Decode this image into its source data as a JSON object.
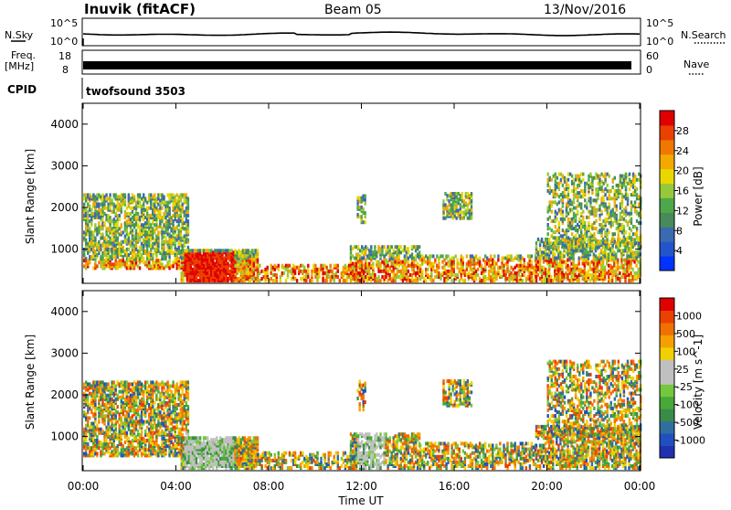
{
  "header": {
    "station": "Inuvik (fitACF)",
    "beam": "Beam 05",
    "date": "13/Nov/2016"
  },
  "panels": {
    "nsky_label": "N.Sky",
    "nsky_ticks": [
      "10^5",
      "10^0"
    ],
    "nsearch_label": "N.Search",
    "nsearch_ticks": [
      "10^5",
      "10^0"
    ],
    "freq_label_1": "Freq.",
    "freq_label_2": "[MHz]",
    "freq_ticks": [
      "18",
      "8"
    ],
    "nave_label": "Nave",
    "nave_ticks": [
      "60",
      "0"
    ],
    "cpid_label": "CPID",
    "cpid_value": "twofsound 3503"
  },
  "chart_data": [
    {
      "type": "heatmap",
      "name": "power",
      "ylabel": "Slant Range [km]",
      "y_ticks": [
        1000,
        2000,
        3000,
        4000
      ],
      "ylim": [
        180,
        4500
      ],
      "colorbar_label": "Power [dB]",
      "colorbar_ticks": [
        "4",
        "8",
        "12",
        "16",
        "20",
        "24",
        "28"
      ],
      "colorbar_colors": [
        "#0033ff",
        "#2255cc",
        "#3a6ab0",
        "#4a8a5a",
        "#4ea84a",
        "#96c83a",
        "#e8d800",
        "#f5a800",
        "#f07800",
        "#ea4000",
        "#e00000"
      ]
    },
    {
      "type": "heatmap",
      "name": "velocity",
      "ylabel": "Slant Range [km]",
      "y_ticks": [
        1000,
        2000,
        3000,
        4000
      ],
      "ylim": [
        180,
        4500
      ],
      "colorbar_label": "Velocity [m s^-1]",
      "colorbar_ticks": [
        "1000",
        "500",
        "100",
        "25",
        "-25",
        "-100",
        "-500",
        "-1000"
      ],
      "colorbar_colors": [
        "#2030b0",
        "#2050c0",
        "#2f6fa0",
        "#3a8a4a",
        "#48a838",
        "#74c83c",
        "#c0c0c0",
        "#c0c0c0",
        "#f0d000",
        "#f5a000",
        "#f07000",
        "#ea4000",
        "#e00000"
      ]
    }
  ],
  "x_axis": {
    "label": "Time UT",
    "ticks": [
      "00:00",
      "04:00",
      "08:00",
      "12:00",
      "16:00",
      "20:00",
      "00:00"
    ]
  }
}
